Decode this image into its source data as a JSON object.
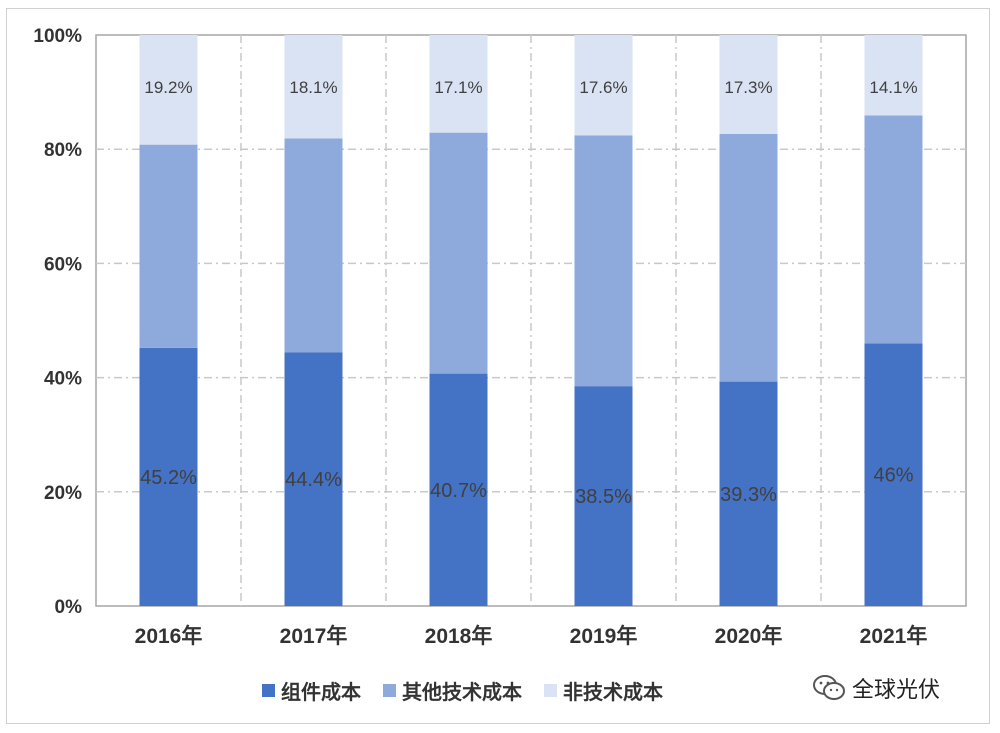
{
  "chart_data": {
    "type": "bar",
    "stacked": true,
    "categories": [
      "2016年",
      "2017年",
      "2018年",
      "2019年",
      "2020年",
      "2021年"
    ],
    "series": [
      {
        "name": "组件成本",
        "color": "#4472c4",
        "values": [
          45.2,
          44.4,
          40.7,
          38.5,
          39.3,
          46
        ],
        "labels": [
          "45.2%",
          "44.4%",
          "40.7%",
          "38.5%",
          "39.3%",
          "46%"
        ]
      },
      {
        "name": "其他技术成本",
        "color": "#8eaadc",
        "values": [
          35.6,
          37.5,
          42.2,
          43.9,
          43.4,
          39.9
        ],
        "labels": [
          "",
          "",
          "",
          "",
          "",
          ""
        ]
      },
      {
        "name": "非技术成本",
        "color": "#dae3f3",
        "values": [
          19.2,
          18.1,
          17.1,
          17.6,
          17.3,
          14.1
        ],
        "labels": [
          "19.2%",
          "18.1%",
          "17.1%",
          "17.6%",
          "17.3%",
          "14.1%"
        ]
      }
    ],
    "yticks": [
      "0%",
      "20%",
      "40%",
      "60%",
      "80%",
      "100%"
    ],
    "ylim": [
      0,
      100
    ],
    "grid": true,
    "legend_position": "bottom"
  },
  "watermark": {
    "text": "全球光伏",
    "icon": "wechat-icon"
  }
}
